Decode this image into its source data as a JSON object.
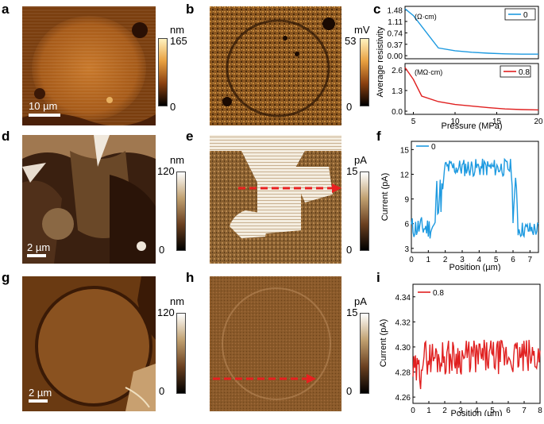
{
  "panel_labels": [
    "a",
    "b",
    "c",
    "d",
    "e",
    "f",
    "g",
    "h",
    "i"
  ],
  "maps": {
    "a": {
      "unit": "nm",
      "max": "165",
      "min": "0",
      "scale": "10 µm"
    },
    "b": {
      "unit": "mV",
      "max": "53",
      "min": "0"
    },
    "d": {
      "unit": "nm",
      "max": "120",
      "min": "0",
      "scale": "2 µm"
    },
    "e": {
      "unit": "pA",
      "max": "15",
      "min": "0"
    },
    "g": {
      "unit": "nm",
      "max": "120",
      "min": "0",
      "scale": "2 µm"
    },
    "h": {
      "unit": "pA",
      "max": "15",
      "min": "0"
    }
  },
  "colors": {
    "topo": "#b8661e",
    "kpfm": "#8a5a22",
    "series0": "#1e9ae0",
    "series08": "#e02020",
    "arrow": "#e82020"
  },
  "chart_data": [
    {
      "id": "c-top",
      "type": "line",
      "ylabel": "Average resistivity",
      "xlabel": "Pressure (MPa)",
      "unit_note": "(Ω·cm)",
      "legend": "0",
      "xlim": [
        4,
        20
      ],
      "ylim": [
        -0.1,
        1.6
      ],
      "yticks": [
        0.0,
        0.37,
        0.74,
        1.11,
        1.48
      ],
      "ytick_labels": [
        "0.00",
        "0.37",
        "0.74",
        "1.11",
        "1.48"
      ],
      "x": [
        4,
        5,
        6,
        7,
        8,
        10,
        12,
        14,
        16,
        18,
        20
      ],
      "y": [
        1.52,
        1.3,
        0.95,
        0.6,
        0.25,
        0.16,
        0.11,
        0.08,
        0.06,
        0.05,
        0.05
      ]
    },
    {
      "id": "c-bottom",
      "type": "line",
      "xlabel": "Pressure (MPa)",
      "unit_note": "(MΩ·cm)",
      "legend": "0.8",
      "xlim": [
        4,
        20
      ],
      "ylim": [
        -0.2,
        3.0
      ],
      "xticks": [
        5,
        10,
        15,
        20
      ],
      "xtick_labels": [
        "5",
        "10",
        "15",
        "20"
      ],
      "yticks": [
        0.0,
        1.3,
        2.6
      ],
      "ytick_labels": [
        "0.0",
        "1.3",
        "2.6"
      ],
      "x": [
        4,
        5,
        6,
        8,
        10,
        12,
        14,
        16,
        18,
        20
      ],
      "y": [
        2.75,
        2.0,
        0.95,
        0.6,
        0.42,
        0.32,
        0.22,
        0.14,
        0.1,
        0.08
      ]
    },
    {
      "id": "f",
      "type": "line",
      "xlabel": "Position (µm)",
      "ylabel": "Current (pA)",
      "legend": "0",
      "xlim": [
        0,
        7.5
      ],
      "ylim": [
        2.5,
        16
      ],
      "xticks": [
        0,
        1,
        2,
        3,
        4,
        5,
        6,
        7
      ],
      "xtick_labels": [
        "0",
        "1",
        "2",
        "3",
        "4",
        "5",
        "6",
        "7"
      ],
      "yticks": [
        3,
        6,
        9,
        12,
        15
      ],
      "ytick_labels": [
        "3",
        "6",
        "9",
        "12",
        "15"
      ],
      "segments": [
        {
          "x0": 0.0,
          "x1": 1.4,
          "base": 5.5,
          "amp": 1.4
        },
        {
          "x0": 1.4,
          "x1": 1.9,
          "base": 9.5,
          "amp": 2.5
        },
        {
          "x0": 1.9,
          "x1": 5.9,
          "base": 12.8,
          "amp": 1.1
        },
        {
          "x0": 5.9,
          "x1": 6.25,
          "base": 9.0,
          "amp": 3.0
        },
        {
          "x0": 6.25,
          "x1": 7.5,
          "base": 5.3,
          "amp": 1.0
        }
      ],
      "n": 150
    },
    {
      "id": "i",
      "type": "line",
      "xlabel": "Position (µm)",
      "ylabel": "Current (pA)",
      "legend": "0.8",
      "xlim": [
        0,
        8
      ],
      "ylim": [
        4.255,
        4.35
      ],
      "xticks": [
        0,
        1,
        2,
        3,
        4,
        5,
        6,
        7,
        8
      ],
      "xtick_labels": [
        "0",
        "1",
        "2",
        "3",
        "4",
        "5",
        "6",
        "7",
        "8"
      ],
      "yticks": [
        4.26,
        4.28,
        4.3,
        4.32,
        4.34
      ],
      "ytick_labels": [
        "4.26",
        "4.28",
        "4.30",
        "4.32",
        "4.34"
      ],
      "base": 4.292,
      "amp": 0.014,
      "n": 150
    }
  ]
}
